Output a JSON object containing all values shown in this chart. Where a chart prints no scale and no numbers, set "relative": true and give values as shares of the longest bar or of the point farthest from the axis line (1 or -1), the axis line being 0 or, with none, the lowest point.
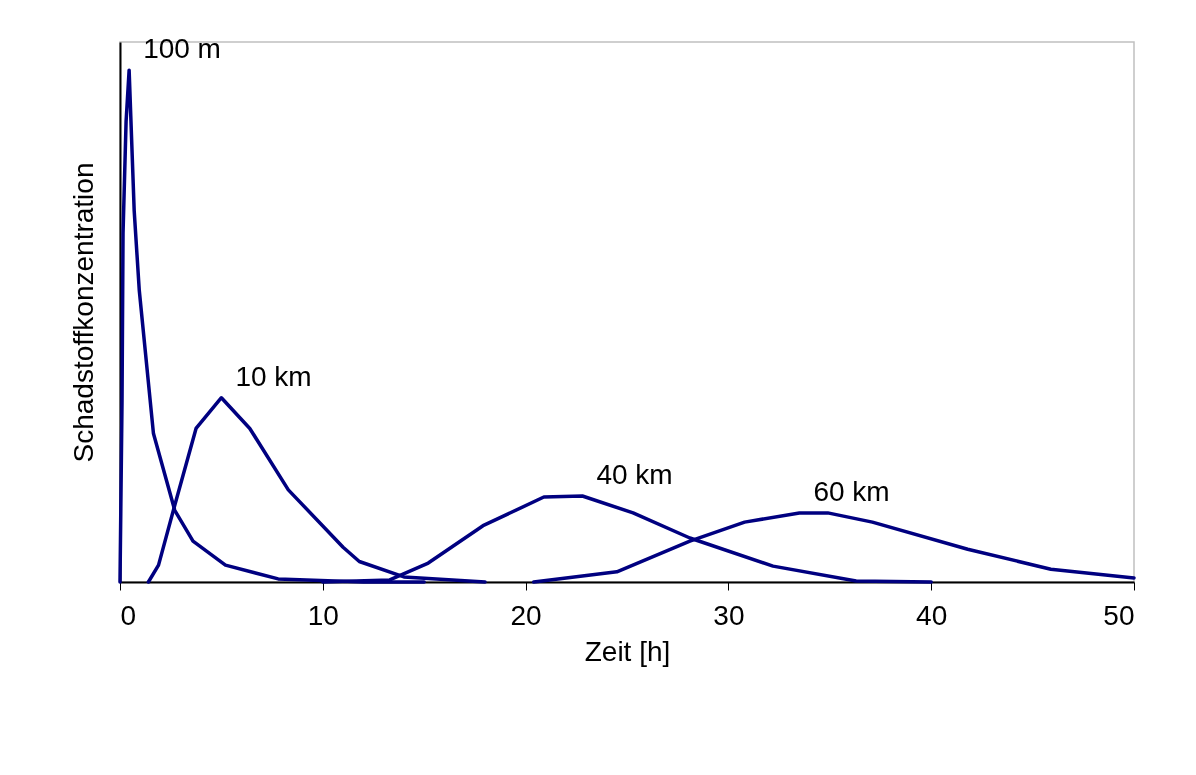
{
  "chart_data": {
    "type": "line",
    "relative": true,
    "xlabel": "Zeit [h]",
    "ylabel": "Schadstoffkonzentration",
    "xlim": [
      0,
      50
    ],
    "xticks": [
      0,
      10,
      20,
      30,
      40,
      50
    ],
    "grid": false,
    "legend": false,
    "marker": "none",
    "line_style": "solid",
    "series": [
      {
        "name": "100 m",
        "color": "#000080",
        "x": [
          0,
          0.1,
          0.15,
          0.3,
          0.45,
          0.7,
          0.95,
          1.65,
          2.7,
          3.6,
          5.2,
          7.8,
          12,
          15
        ],
        "values": [
          0,
          0.354,
          0.682,
          0.9,
          1,
          0.725,
          0.57,
          0.29,
          0.14,
          0.08,
          0.033,
          0.006,
          0,
          0
        ]
      },
      {
        "name": "10 km",
        "color": "#000080",
        "x": [
          1.4,
          1.9,
          2.7,
          3.75,
          5.0,
          6.4,
          8.3,
          11,
          11.8,
          14,
          18
        ],
        "values": [
          0,
          0.033,
          0.15,
          0.3,
          0.36,
          0.3,
          0.18,
          0.068,
          0.04,
          0.01,
          0
        ]
      },
      {
        "name": "40 km",
        "color": "#000080",
        "x": [
          10,
          13.3,
          15.2,
          17.9,
          20.9,
          22.8,
          25.3,
          28.1,
          32.2,
          36.3,
          40
        ],
        "values": [
          0,
          0.004,
          0.037,
          0.11,
          0.166,
          0.168,
          0.135,
          0.086,
          0.031,
          0.002,
          0
        ]
      },
      {
        "name": "60 km",
        "color": "#000080",
        "x": [
          20.4,
          24.5,
          28.1,
          30.8,
          33.5,
          34.9,
          37.1,
          41.8,
          45.9,
          50
        ],
        "values": [
          0,
          0.02,
          0.08,
          0.117,
          0.135,
          0.135,
          0.117,
          0.064,
          0.025,
          0.008
        ]
      }
    ]
  }
}
